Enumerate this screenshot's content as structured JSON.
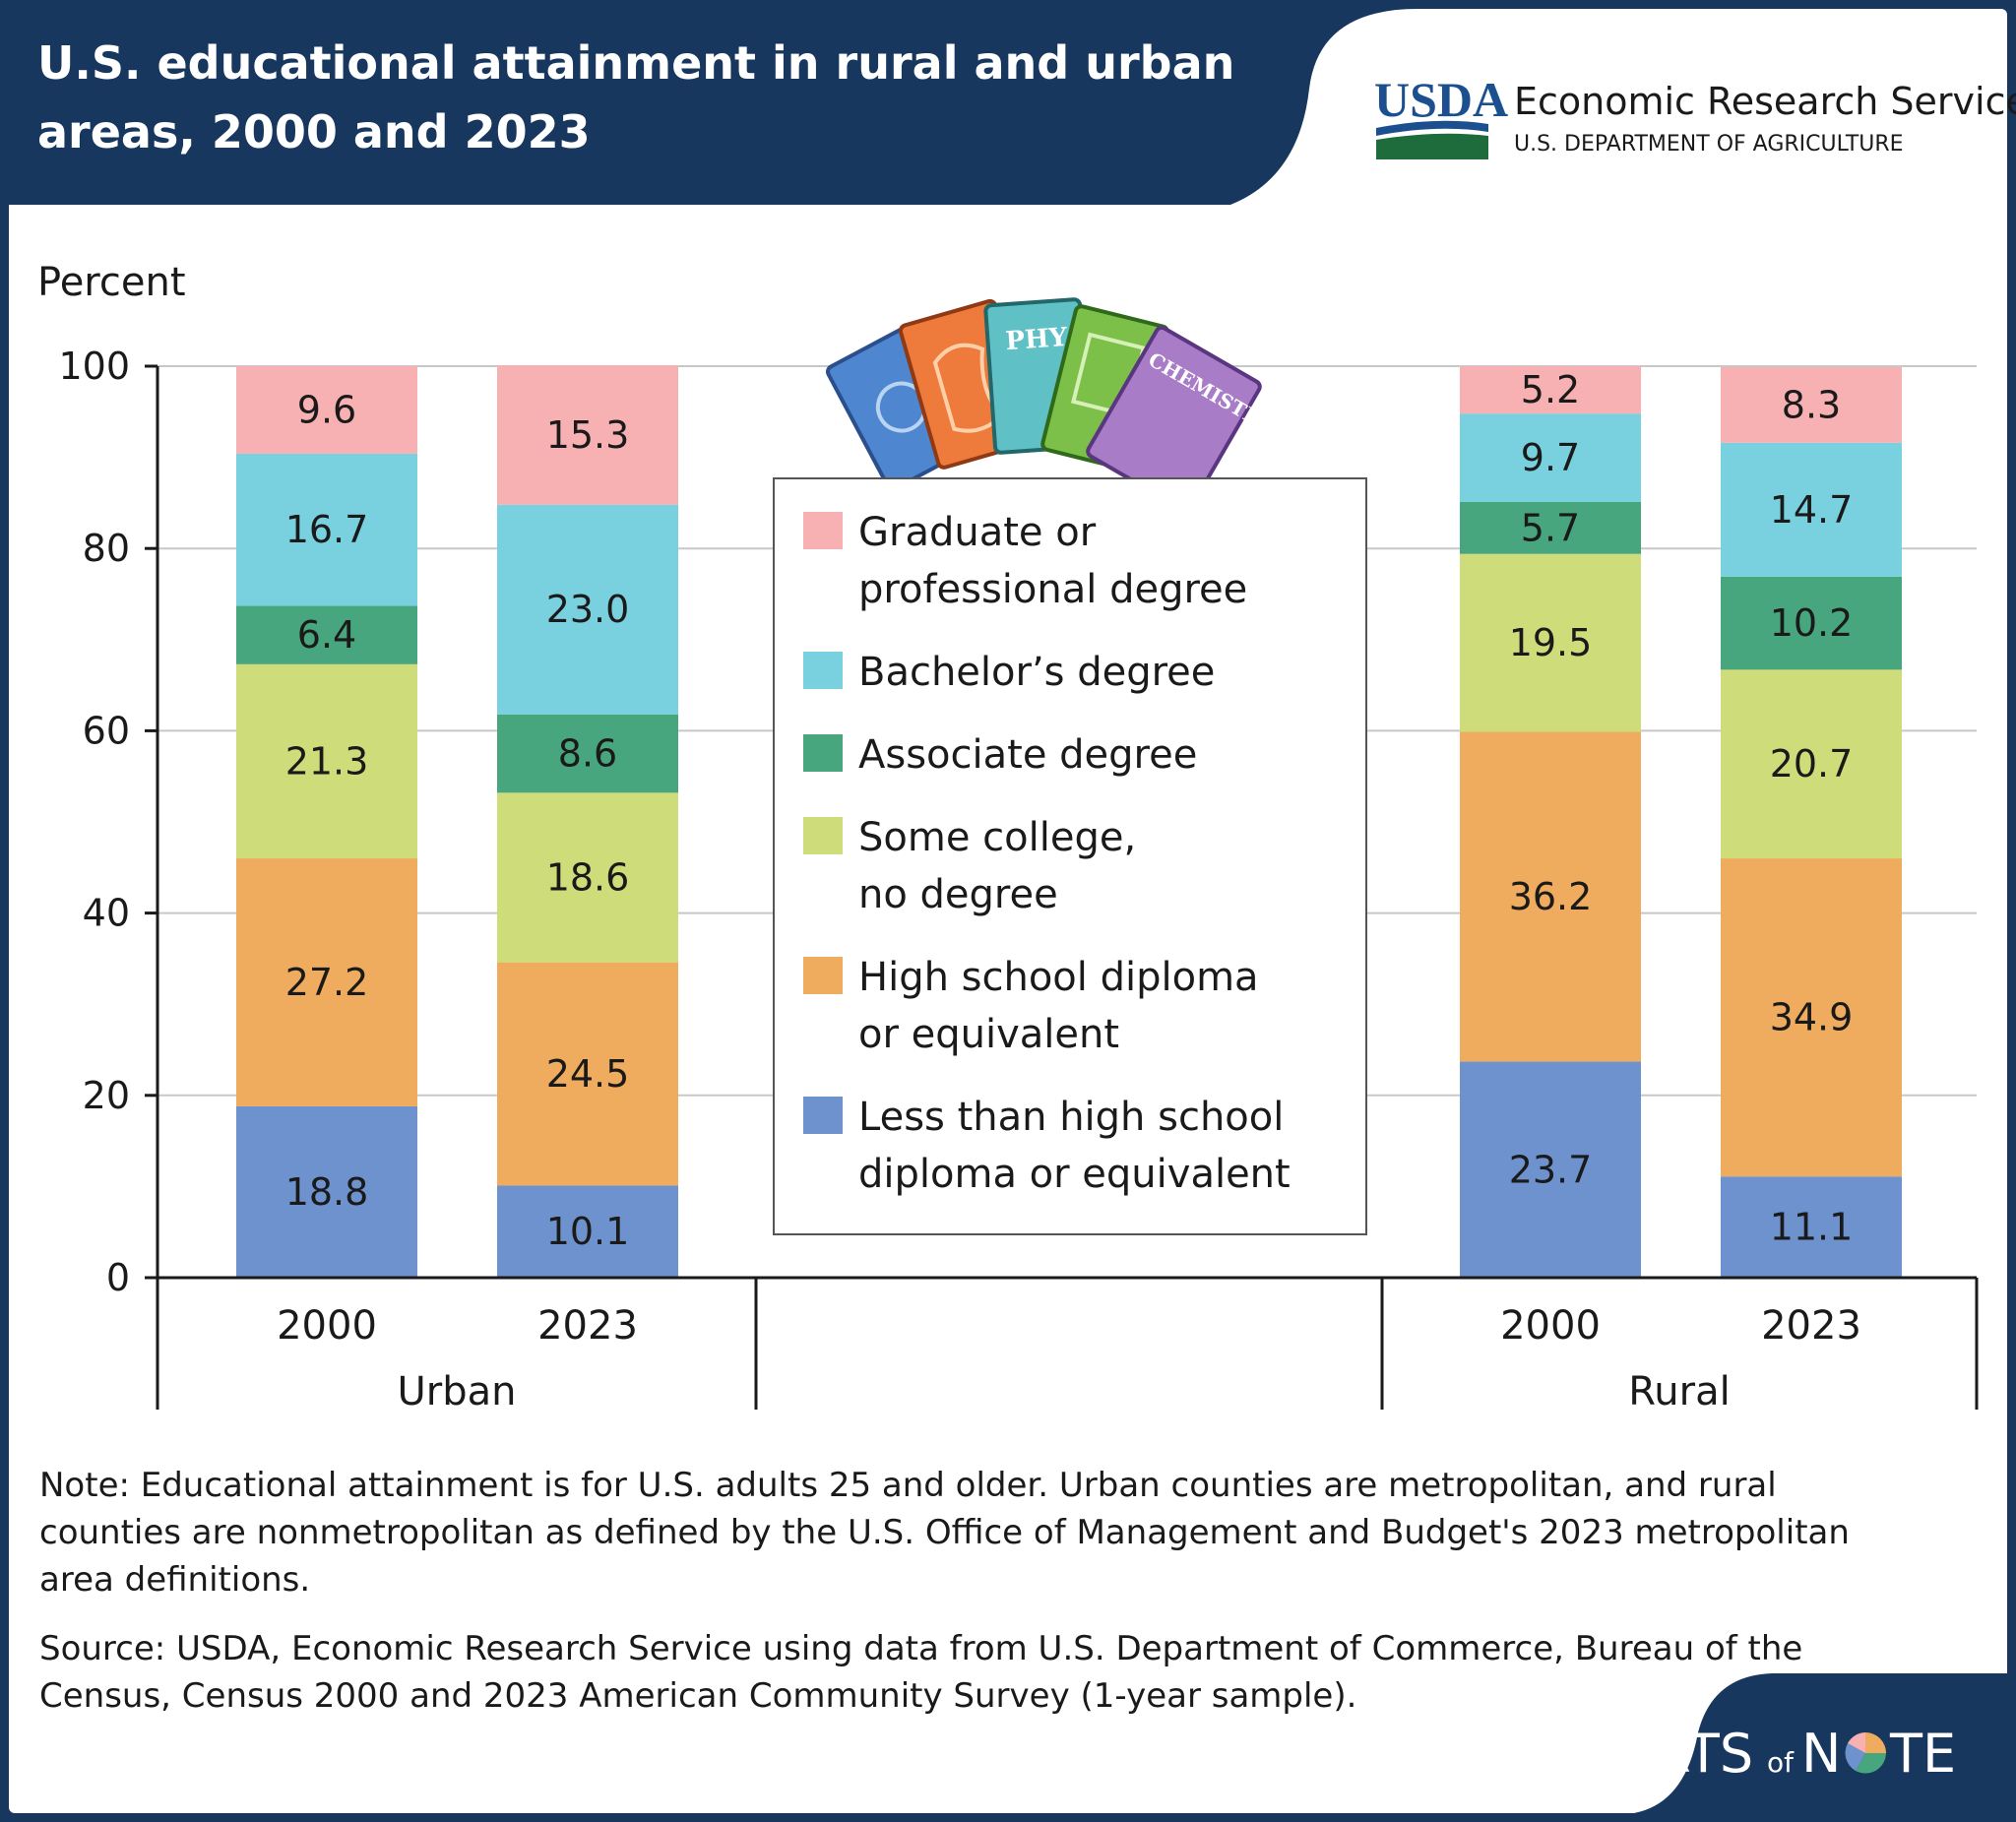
{
  "header": {
    "title_lines": [
      "U.S. educational attainment in rural and urban",
      "areas, 2000 and 2023"
    ],
    "logo_text": "USDA",
    "agency_name": "Economic Research Service",
    "department": "U.S. DEPARTMENT OF AGRICULTURE"
  },
  "book_spine_texts": [
    "PHY",
    "CHEMISTRY"
  ],
  "chart_data": {
    "type": "bar",
    "stacked": true,
    "ylabel": "Percent",
    "ylim": [
      0,
      100
    ],
    "yticks": [
      0,
      20,
      40,
      60,
      80,
      100
    ],
    "grid": true,
    "groups": [
      "Urban",
      "Rural"
    ],
    "categories": [
      "2000",
      "2023",
      "2000",
      "2023"
    ],
    "category_groups": [
      "Urban",
      "Urban",
      "Rural",
      "Rural"
    ],
    "legend_position": "center",
    "series": [
      {
        "name": "Less than high school diploma or equivalent",
        "legend_lines": [
          "Less than high school",
          "diploma or equivalent"
        ],
        "color": "#6d92ce",
        "values": [
          18.8,
          10.1,
          23.7,
          11.1
        ]
      },
      {
        "name": "High school diploma or equivalent",
        "legend_lines": [
          "High school diploma",
          "or equivalent"
        ],
        "color": "#f0ac5e",
        "values": [
          27.2,
          24.5,
          36.2,
          34.9
        ]
      },
      {
        "name": "Some college, no degree",
        "legend_lines": [
          "Some college,",
          "no degree"
        ],
        "color": "#cedc7a",
        "values": [
          21.3,
          18.6,
          19.5,
          20.7
        ]
      },
      {
        "name": "Associate degree",
        "legend_lines": [
          "Associate degree"
        ],
        "color": "#48a67e",
        "values": [
          6.4,
          8.6,
          5.7,
          10.2
        ]
      },
      {
        "name": "Bachelor's degree",
        "legend_lines": [
          "Bachelor’s degree"
        ],
        "color": "#79d0de",
        "values": [
          16.7,
          23.0,
          9.7,
          14.7
        ]
      },
      {
        "name": "Graduate or professional degree",
        "legend_lines": [
          "Graduate or",
          "professional degree"
        ],
        "color": "#f7b1b3",
        "values": [
          9.6,
          15.3,
          5.2,
          8.3
        ]
      }
    ]
  },
  "footer": {
    "note_lines": [
      "Note: Educational attainment is for U.S. adults 25 and older. Urban counties are metropolitan, and rural",
      "counties are nonmetropolitan as defined by the U.S. Office of Management and Budget's 2023 metropolitan",
      "area definitions."
    ],
    "source_lines": [
      "Source: USDA, Economic Research Service using data from U.S. Department of Commerce, Bureau of the",
      "Census, Census 2000 and 2023 American Community Survey (1-year sample)."
    ],
    "brand_part1": "CHARTS",
    "brand_of": "of",
    "brand_n": "N",
    "brand_te": "TE",
    "colors": {
      "navy": "#17375e",
      "usda_blue": "#1b4f8f",
      "usda_green": "#1e6b3c"
    }
  }
}
